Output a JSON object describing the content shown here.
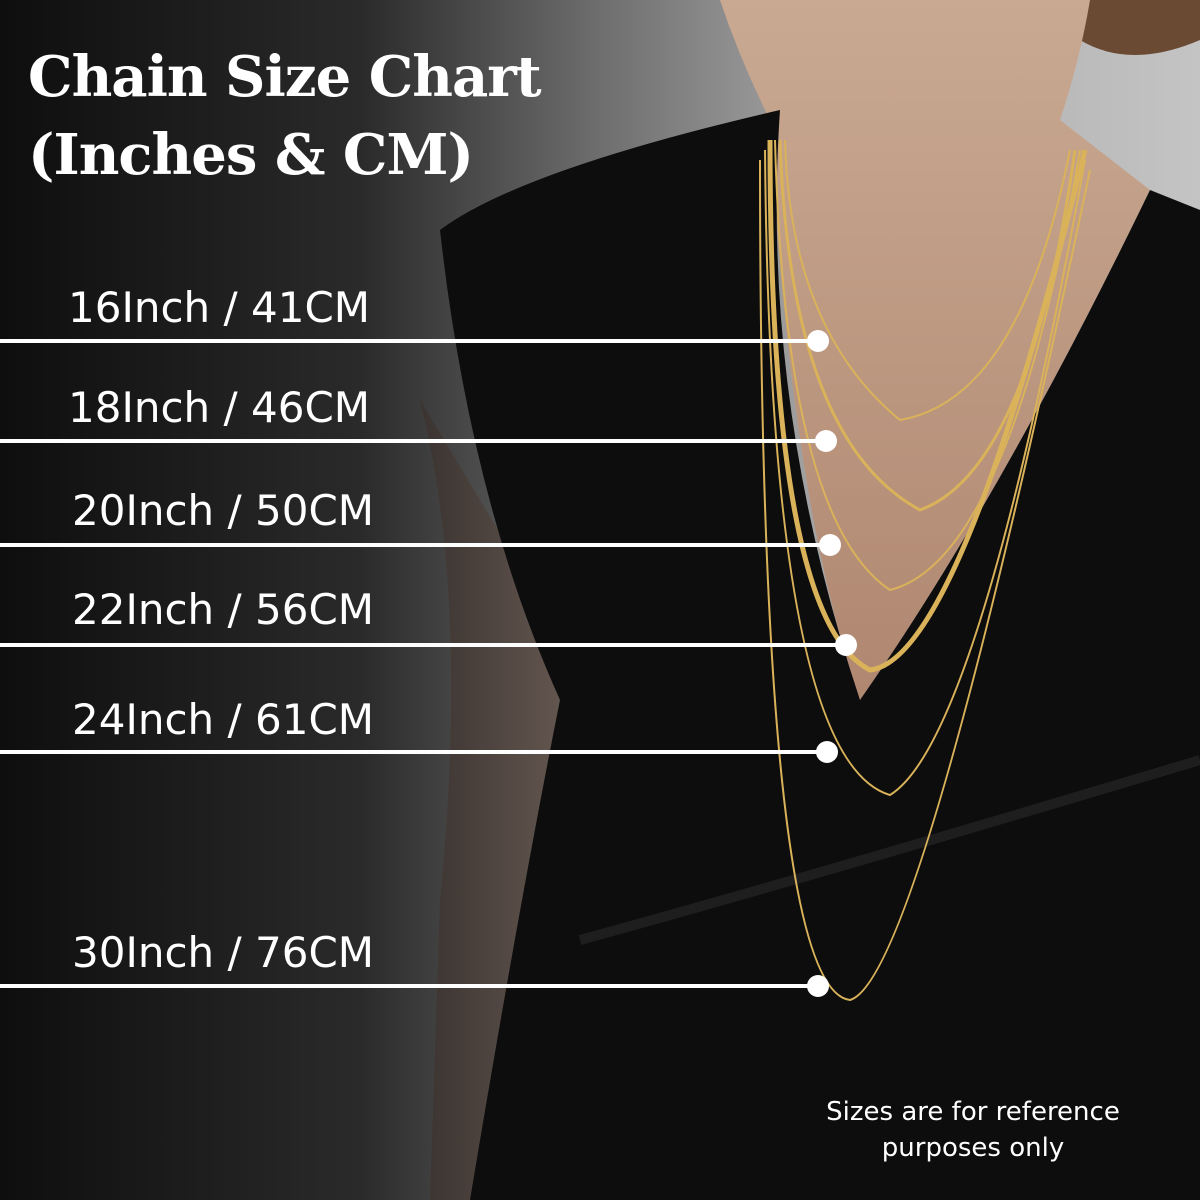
{
  "title": {
    "line1": "Chain Size Chart",
    "line2": "(Inches & CM)"
  },
  "sizes": [
    {
      "label": "16Inch / 41CM",
      "inches": 16,
      "cm": 41
    },
    {
      "label": "18Inch / 46CM",
      "inches": 18,
      "cm": 46
    },
    {
      "label": "20Inch / 50CM",
      "inches": 20,
      "cm": 50
    },
    {
      "label": "22Inch / 56CM",
      "inches": 22,
      "cm": 56
    },
    {
      "label": "24Inch / 61CM",
      "inches": 24,
      "cm": 61
    },
    {
      "label": "30Inch / 76CM",
      "inches": 30,
      "cm": 76
    }
  ],
  "note": "Sizes are for reference purposes only",
  "colors": {
    "text": "#ffffff",
    "marker": "#ffffff",
    "chain": "#d9b25a",
    "dress": "#0d0d0d",
    "skin": "#c9a58c"
  }
}
